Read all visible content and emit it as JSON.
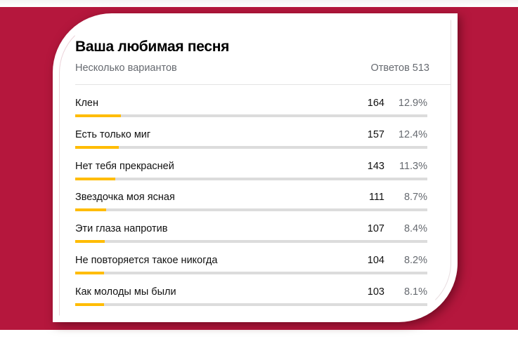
{
  "poll": {
    "title": "Ваша любимая песня",
    "subtitle": "Несколько вариантов",
    "total_label": "Ответов 513",
    "total_responses": 513,
    "colors": {
      "background": "#b5173d",
      "bar_fill": "#ffbc00",
      "bar_track": "#dcdcdc"
    },
    "options": [
      {
        "label": "Клен",
        "count": "164",
        "percent": "12.9%",
        "value": 12.9
      },
      {
        "label": "Есть только миг",
        "count": "157",
        "percent": "12.4%",
        "value": 12.4
      },
      {
        "label": "Нет тебя прекрасней",
        "count": "143",
        "percent": "11.3%",
        "value": 11.3
      },
      {
        "label": "Звездочка моя ясная",
        "count": "111",
        "percent": "8.7%",
        "value": 8.7
      },
      {
        "label": "Эти глаза напротив",
        "count": "107",
        "percent": "8.4%",
        "value": 8.4
      },
      {
        "label": "Не повторяется такое никогда",
        "count": "104",
        "percent": "8.2%",
        "value": 8.2
      },
      {
        "label": "Как молоды мы были",
        "count": "103",
        "percent": "8.1%",
        "value": 8.1
      }
    ]
  }
}
